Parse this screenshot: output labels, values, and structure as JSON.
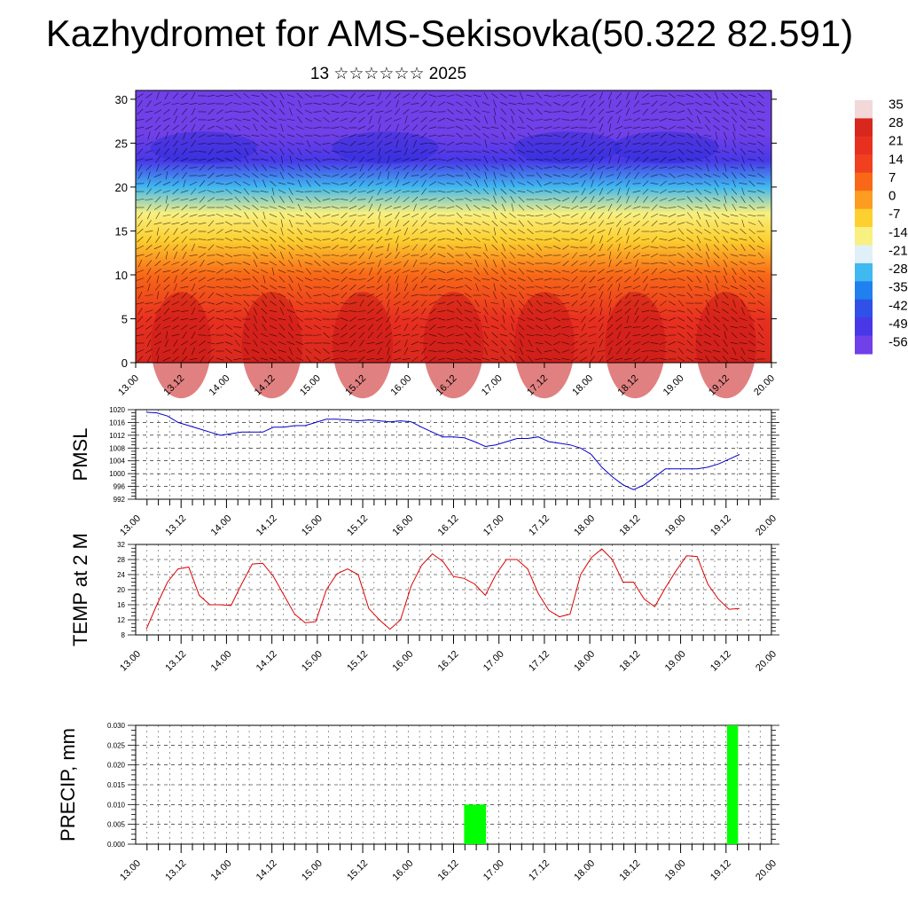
{
  "title": "Kazhydromet for AMS-Sekisovka(50.322 82.591)",
  "subtitle": "13 ☆☆☆☆☆☆ 2025",
  "x_tick_labels": [
    "13.00",
    "13.12",
    "14.00",
    "14.12",
    "15.00",
    "15.12",
    "16.00",
    "16.12",
    "17.00",
    "17.12",
    "18.00",
    "18.12",
    "19.00",
    "19.12",
    "20.00"
  ],
  "chart_data": [
    {
      "type": "heatmap",
      "name": "temperature-cross-section",
      "title": "",
      "xlabel": "",
      "ylabel": "",
      "ylim": [
        0,
        31
      ],
      "y_ticks": [
        0,
        5,
        10,
        15,
        20,
        25,
        30
      ],
      "colorbar_labels": [
        "35",
        "28",
        "21",
        "14",
        "7",
        "0",
        "-7",
        "-14",
        "-21",
        "-28",
        "-35",
        "-42",
        "-49",
        "-56"
      ],
      "colorbar_values": [
        35,
        28,
        21,
        14,
        7,
        0,
        -7,
        -14,
        -21,
        -28,
        -35,
        -42,
        -49,
        -56
      ],
      "colorbar_colors": [
        "#f2d8d8",
        "#d8281e",
        "#e83020",
        "#f04020",
        "#f86818",
        "#fc9c20",
        "#fdd030",
        "#f8f080",
        "#e0f0f8",
        "#40b8f0",
        "#2080f0",
        "#3050e8",
        "#4838e8",
        "#7040e8"
      ],
      "vertical_profile": [
        {
          "level": 0,
          "value": 28
        },
        {
          "level": 5,
          "value": 21
        },
        {
          "level": 10,
          "value": 7
        },
        {
          "level": 14,
          "value": -7
        },
        {
          "level": 17,
          "value": -14
        },
        {
          "level": 20,
          "value": -28
        },
        {
          "level": 23,
          "value": -49
        },
        {
          "level": 26,
          "value": -56
        },
        {
          "level": 31,
          "value": -56
        }
      ],
      "overlay": "wind vectors"
    },
    {
      "type": "line",
      "name": "pmsl",
      "title": "",
      "ylabel": "PMSL",
      "ylim": [
        992,
        1020
      ],
      "y_ticks": [
        992,
        996,
        1000,
        1004,
        1008,
        1012,
        1016,
        1020
      ],
      "color": "#0000cc",
      "x": [
        0,
        3,
        6,
        9,
        12,
        15,
        18,
        21,
        24,
        27,
        30,
        33,
        36,
        39,
        42,
        45,
        48,
        51,
        54,
        57,
        60,
        63,
        66,
        69,
        72,
        75,
        78,
        81,
        84,
        87,
        90,
        93,
        96,
        99,
        102,
        105,
        108,
        111,
        114,
        117,
        120,
        123,
        126,
        129,
        132,
        135,
        138,
        141,
        144,
        147,
        150,
        153,
        156,
        159,
        162,
        165,
        168
      ],
      "values": [
        1019.2,
        1019,
        1018,
        1016,
        1015,
        1014,
        1013,
        1012,
        1012.5,
        1013,
        1013,
        1013,
        1014.5,
        1014.5,
        1015,
        1015,
        1016,
        1017,
        1017,
        1016.8,
        1016.5,
        1016.8,
        1016.5,
        1016.2,
        1016.5,
        1016.2,
        1014.5,
        1013,
        1011.5,
        1011.5,
        1011.2,
        1010,
        1008.5,
        1009,
        1010,
        1011,
        1011,
        1011.5,
        1010,
        1009.5,
        1009,
        1008,
        1006,
        1002,
        999,
        996.5,
        995,
        996.5,
        999,
        1001.5,
        1001.5,
        1001.5,
        1001.5,
        1002,
        1003,
        1004.5,
        1006
      ]
    },
    {
      "type": "line",
      "name": "temp-2m",
      "title": "",
      "ylabel": "TEMP at 2 M",
      "ylim": [
        8,
        32
      ],
      "y_ticks": [
        8,
        12,
        16,
        20,
        24,
        28,
        32
      ],
      "color": "#dd0000",
      "x": [
        0,
        3,
        6,
        9,
        12,
        15,
        18,
        21,
        24,
        27,
        30,
        33,
        36,
        39,
        42,
        45,
        48,
        51,
        54,
        57,
        60,
        63,
        66,
        69,
        72,
        75,
        78,
        81,
        84,
        87,
        90,
        93,
        96,
        99,
        102,
        105,
        108,
        111,
        114,
        117,
        120,
        123,
        126,
        129,
        132,
        135,
        138,
        141,
        144,
        147,
        150,
        153,
        156,
        159,
        162,
        165,
        168
      ],
      "values": [
        9.5,
        16,
        22,
        25.5,
        26,
        18.5,
        16,
        16,
        15.8,
        21.5,
        26.8,
        27,
        23.5,
        18.5,
        13.5,
        11.2,
        11.5,
        20,
        24.2,
        25.5,
        24,
        15,
        12,
        9.5,
        12,
        21,
        26.5,
        29.5,
        27.5,
        23.5,
        23,
        21.5,
        18.5,
        24,
        28,
        28,
        25.5,
        19,
        14.5,
        12.8,
        13.5,
        24,
        28.5,
        30.8,
        28,
        22,
        22,
        17.5,
        15.5,
        20.5,
        25,
        29,
        28.8,
        21.5,
        17.5,
        14.8,
        15
      ]
    },
    {
      "type": "bar",
      "name": "precip",
      "title": "",
      "ylabel": "PRECIP, mm",
      "ylim": [
        0,
        0.03
      ],
      "y_ticks": [
        0.0,
        0.005,
        0.01,
        0.015,
        0.02,
        0.025,
        0.03
      ],
      "y_tick_labels": [
        "0.000",
        "0.005",
        "0.010",
        "0.015",
        "0.020",
        "0.025",
        "0.030"
      ],
      "color": "#00ff00",
      "bars": [
        {
          "x_start": 87,
          "x_end": 93,
          "value": 0.01
        },
        {
          "x_start": 159,
          "x_end": 162,
          "value": 0.03
        }
      ]
    }
  ]
}
